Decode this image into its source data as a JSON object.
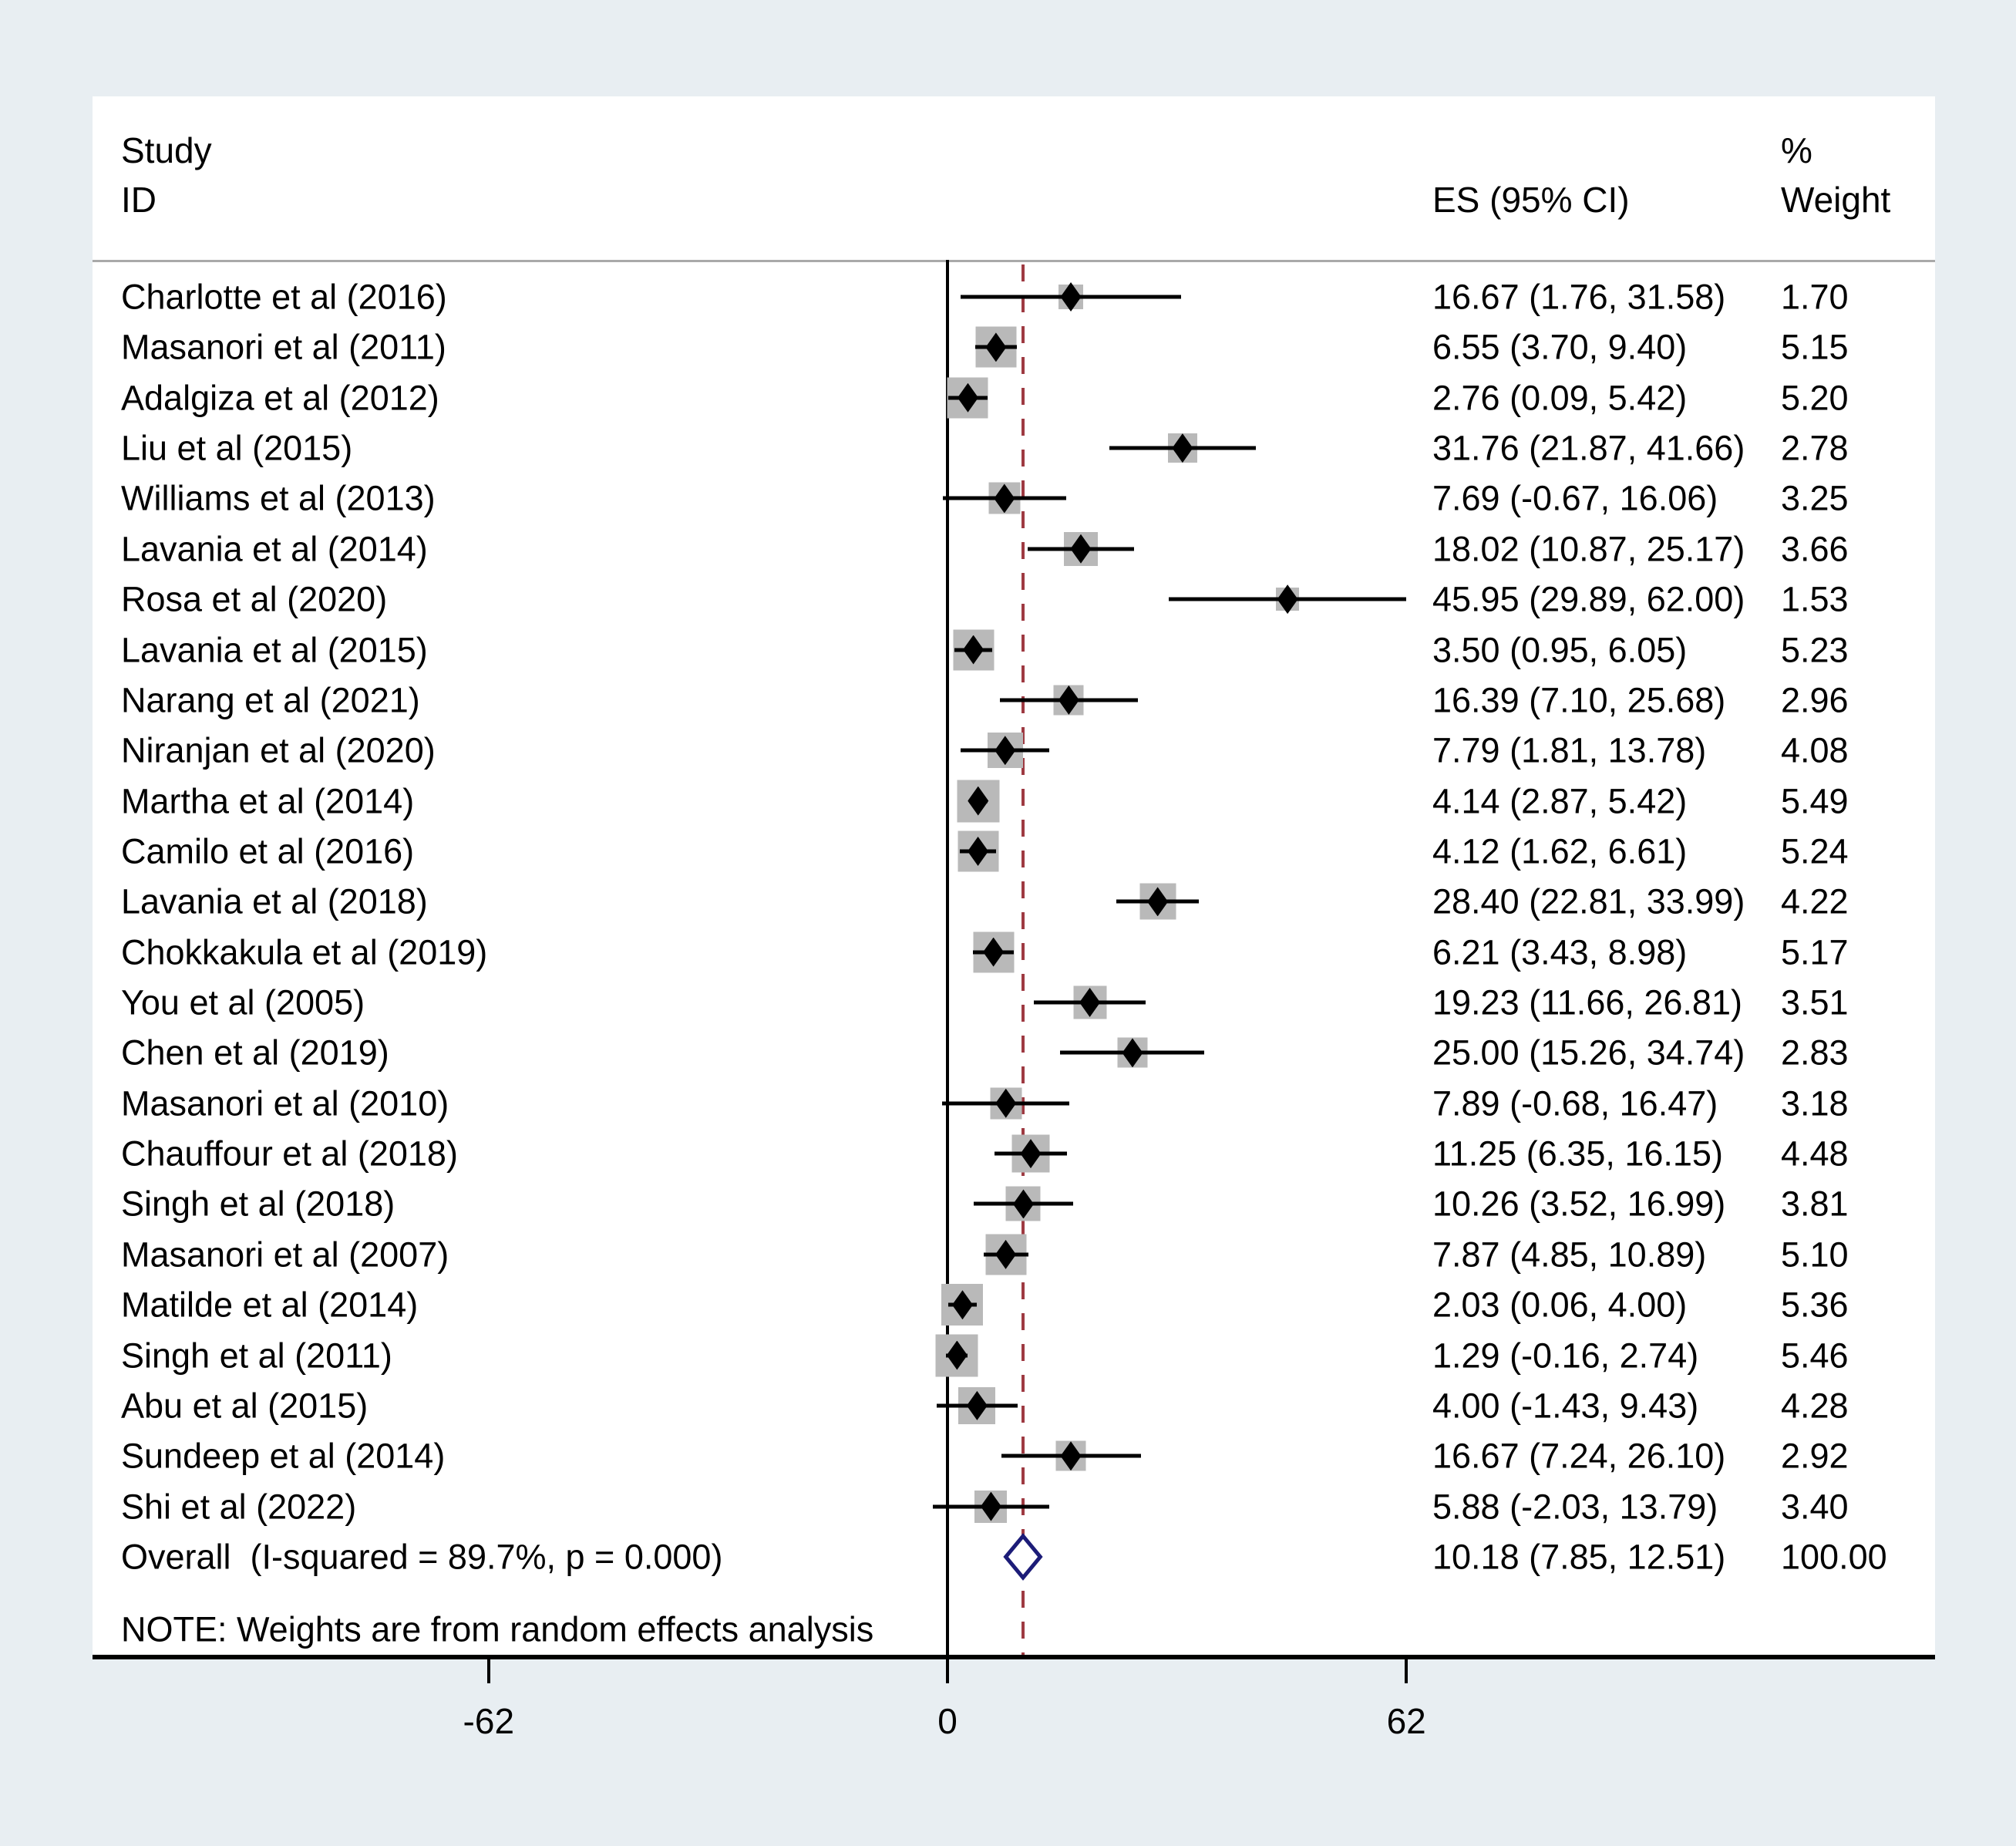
{
  "figure": {
    "background": "#e8eef2",
    "panel_background": "#ffffff",
    "axis_color": "#000000",
    "header_rule_color": "#a9a9a9",
    "box_color": "#b9b9b9",
    "marker_color": "#000000",
    "overall_diamond_color": "#1c1c78",
    "reference_line_color": "#9e3a42"
  },
  "header": {
    "study_line1": "Study",
    "study_line2": "ID",
    "es_col": "ES (95% CI)",
    "weight_line1": "%",
    "weight_line2": "Weight"
  },
  "note": "NOTE: Weights are from random effects analysis",
  "chart_data": {
    "type": "forest",
    "effect_measure": "ES (95% CI)",
    "x_axis": {
      "ticks": [
        -62,
        0,
        62
      ],
      "zero_line": 0,
      "range": [
        -62,
        62
      ]
    },
    "reference_line_value": 10.18,
    "studies": [
      {
        "name": "Charlotte et al (2016)",
        "es": 16.67,
        "lo": 1.76,
        "hi": 31.58,
        "weight": 1.7,
        "es_label": "16.67 (1.76, 31.58)",
        "weight_label": "1.70"
      },
      {
        "name": "Masanori et al (2011)",
        "es": 6.55,
        "lo": 3.7,
        "hi": 9.4,
        "weight": 5.15,
        "es_label": "6.55 (3.70, 9.40)",
        "weight_label": "5.15"
      },
      {
        "name": "Adalgiza et al (2012)",
        "es": 2.76,
        "lo": 0.09,
        "hi": 5.42,
        "weight": 5.2,
        "es_label": "2.76 (0.09, 5.42)",
        "weight_label": "5.20"
      },
      {
        "name": "Liu et al (2015)",
        "es": 31.76,
        "lo": 21.87,
        "hi": 41.66,
        "weight": 2.78,
        "es_label": "31.76 (21.87, 41.66)",
        "weight_label": "2.78"
      },
      {
        "name": "Williams et al (2013)",
        "es": 7.69,
        "lo": -0.67,
        "hi": 16.06,
        "weight": 3.25,
        "es_label": "7.69 (-0.67, 16.06)",
        "weight_label": "3.25"
      },
      {
        "name": "Lavania et al (2014)",
        "es": 18.02,
        "lo": 10.87,
        "hi": 25.17,
        "weight": 3.66,
        "es_label": "18.02 (10.87, 25.17)",
        "weight_label": "3.66"
      },
      {
        "name": "Rosa et al (2020)",
        "es": 45.95,
        "lo": 29.89,
        "hi": 62.0,
        "weight": 1.53,
        "es_label": "45.95 (29.89, 62.00)",
        "weight_label": "1.53"
      },
      {
        "name": "Lavania et al (2015)",
        "es": 3.5,
        "lo": 0.95,
        "hi": 6.05,
        "weight": 5.23,
        "es_label": "3.50 (0.95, 6.05)",
        "weight_label": "5.23"
      },
      {
        "name": "Narang et al (2021)",
        "es": 16.39,
        "lo": 7.1,
        "hi": 25.68,
        "weight": 2.96,
        "es_label": "16.39 (7.10, 25.68)",
        "weight_label": "2.96"
      },
      {
        "name": "Niranjan et al (2020)",
        "es": 7.79,
        "lo": 1.81,
        "hi": 13.78,
        "weight": 4.08,
        "es_label": "7.79 (1.81, 13.78)",
        "weight_label": "4.08"
      },
      {
        "name": "Martha et al (2014)",
        "es": 4.14,
        "lo": 2.87,
        "hi": 5.42,
        "weight": 5.49,
        "es_label": "4.14 (2.87, 5.42)",
        "weight_label": "5.49"
      },
      {
        "name": "Camilo et al (2016)",
        "es": 4.12,
        "lo": 1.62,
        "hi": 6.61,
        "weight": 5.24,
        "es_label": "4.12 (1.62, 6.61)",
        "weight_label": "5.24"
      },
      {
        "name": "Lavania et al (2018)",
        "es": 28.4,
        "lo": 22.81,
        "hi": 33.99,
        "weight": 4.22,
        "es_label": "28.40 (22.81, 33.99)",
        "weight_label": "4.22"
      },
      {
        "name": "Chokkakula et al (2019)",
        "es": 6.21,
        "lo": 3.43,
        "hi": 8.98,
        "weight": 5.17,
        "es_label": "6.21 (3.43, 8.98)",
        "weight_label": "5.17"
      },
      {
        "name": "You et al (2005)",
        "es": 19.23,
        "lo": 11.66,
        "hi": 26.81,
        "weight": 3.51,
        "es_label": "19.23 (11.66, 26.81)",
        "weight_label": "3.51"
      },
      {
        "name": "Chen et al (2019)",
        "es": 25.0,
        "lo": 15.26,
        "hi": 34.74,
        "weight": 2.83,
        "es_label": "25.00 (15.26, 34.74)",
        "weight_label": "2.83"
      },
      {
        "name": "Masanori et al (2010)",
        "es": 7.89,
        "lo": -0.68,
        "hi": 16.47,
        "weight": 3.18,
        "es_label": "7.89 (-0.68, 16.47)",
        "weight_label": "3.18"
      },
      {
        "name": "Chauffour et al (2018)",
        "es": 11.25,
        "lo": 6.35,
        "hi": 16.15,
        "weight": 4.48,
        "es_label": "11.25 (6.35, 16.15)",
        "weight_label": "4.48"
      },
      {
        "name": "Singh et al (2018)",
        "es": 10.26,
        "lo": 3.52,
        "hi": 16.99,
        "weight": 3.81,
        "es_label": "10.26 (3.52, 16.99)",
        "weight_label": "3.81"
      },
      {
        "name": "Masanori et al (2007)",
        "es": 7.87,
        "lo": 4.85,
        "hi": 10.89,
        "weight": 5.1,
        "es_label": "7.87 (4.85, 10.89)",
        "weight_label": "5.10"
      },
      {
        "name": "Matilde et al (2014)",
        "es": 2.03,
        "lo": 0.06,
        "hi": 4.0,
        "weight": 5.36,
        "es_label": "2.03 (0.06, 4.00)",
        "weight_label": "5.36"
      },
      {
        "name": "Singh et al (2011)",
        "es": 1.29,
        "lo": -0.16,
        "hi": 2.74,
        "weight": 5.46,
        "es_label": "1.29 (-0.16, 2.74)",
        "weight_label": "5.46"
      },
      {
        "name": "Abu et al (2015)",
        "es": 4.0,
        "lo": -1.43,
        "hi": 9.43,
        "weight": 4.28,
        "es_label": "4.00 (-1.43, 9.43)",
        "weight_label": "4.28"
      },
      {
        "name": "Sundeep et al (2014)",
        "es": 16.67,
        "lo": 7.24,
        "hi": 26.1,
        "weight": 2.92,
        "es_label": "16.67 (7.24, 26.10)",
        "weight_label": "2.92"
      },
      {
        "name": "Shi et al (2022)",
        "es": 5.88,
        "lo": -2.03,
        "hi": 13.79,
        "weight": 3.4,
        "es_label": "5.88 (-2.03, 13.79)",
        "weight_label": "3.40"
      }
    ],
    "overall": {
      "name": "Overall  (I-squared = 89.7%, p = 0.000)",
      "es": 10.18,
      "lo": 7.85,
      "hi": 12.51,
      "weight": 100.0,
      "es_label": "10.18 (7.85, 12.51)",
      "weight_label": "100.00"
    }
  }
}
